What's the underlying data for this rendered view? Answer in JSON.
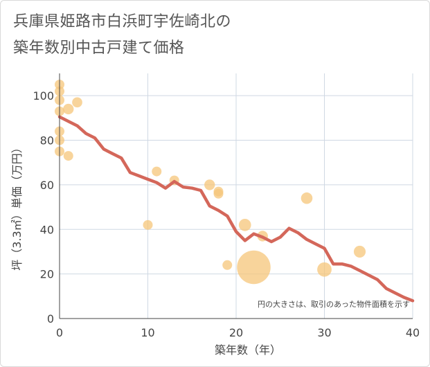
{
  "title_line1": "兵庫県姫路市白浜町宇佐崎北の",
  "title_line2": "築年数別中古戸建て価格",
  "chart_data": {
    "type": "scatter",
    "title": "兵庫県姫路市白浜町宇佐崎北の築年数別中古戸建て価格",
    "xlabel": "築年数（年）",
    "ylabel": "坪（3.3㎡）単価（万円）",
    "xlim": [
      0,
      40
    ],
    "ylim": [
      0,
      110
    ],
    "x_ticks": [
      0,
      10,
      20,
      30,
      40
    ],
    "y_ticks": [
      0,
      20,
      40,
      60,
      80,
      100
    ],
    "grid": true,
    "annotation": "円の大きさは、取引のあった物件面積を示す",
    "bubble_color": "#f5c57a",
    "line_color": "#d4675a",
    "scatter": [
      {
        "x": 0,
        "y": 105,
        "size": 1
      },
      {
        "x": 0,
        "y": 102,
        "size": 1
      },
      {
        "x": 0,
        "y": 98,
        "size": 1
      },
      {
        "x": 0,
        "y": 93,
        "size": 1
      },
      {
        "x": 0,
        "y": 84,
        "size": 1
      },
      {
        "x": 0,
        "y": 80,
        "size": 1
      },
      {
        "x": 0,
        "y": 75,
        "size": 1
      },
      {
        "x": 1,
        "y": 94,
        "size": 1.2
      },
      {
        "x": 1,
        "y": 73,
        "size": 1
      },
      {
        "x": 2,
        "y": 97,
        "size": 1.1
      },
      {
        "x": 10,
        "y": 42,
        "size": 1
      },
      {
        "x": 11,
        "y": 66,
        "size": 1
      },
      {
        "x": 13,
        "y": 62,
        "size": 1
      },
      {
        "x": 17,
        "y": 60,
        "size": 1.2
      },
      {
        "x": 18,
        "y": 57,
        "size": 1
      },
      {
        "x": 18,
        "y": 56,
        "size": 1
      },
      {
        "x": 19,
        "y": 24,
        "size": 1
      },
      {
        "x": 21,
        "y": 42,
        "size": 1.6
      },
      {
        "x": 22,
        "y": 23,
        "size": 12
      },
      {
        "x": 23,
        "y": 37,
        "size": 1.2
      },
      {
        "x": 28,
        "y": 54,
        "size": 1.4
      },
      {
        "x": 30,
        "y": 22,
        "size": 2.2
      },
      {
        "x": 34,
        "y": 30,
        "size": 1.5
      }
    ],
    "trend": {
      "x": [
        0,
        1,
        2,
        3,
        4,
        5,
        6,
        7,
        8,
        9,
        10,
        11,
        12,
        13,
        14,
        15,
        16,
        17,
        18,
        19,
        20,
        21,
        22,
        23,
        24,
        25,
        26,
        27,
        28,
        29,
        30,
        31,
        32,
        33,
        34,
        35,
        36,
        37,
        38,
        39,
        40
      ],
      "y": [
        90.5,
        88.5,
        86.5,
        83,
        81,
        76,
        74,
        72,
        65.5,
        64,
        62.5,
        61,
        58.5,
        61.5,
        59,
        58.5,
        57.5,
        50.5,
        48.5,
        46,
        39,
        35,
        38,
        36.5,
        34.5,
        36.5,
        40.5,
        38.5,
        35.5,
        33.5,
        31.5,
        24.5,
        24.5,
        23.5,
        21.5,
        19.5,
        17.5,
        13.5,
        11.5,
        9.5,
        8
      ]
    }
  }
}
